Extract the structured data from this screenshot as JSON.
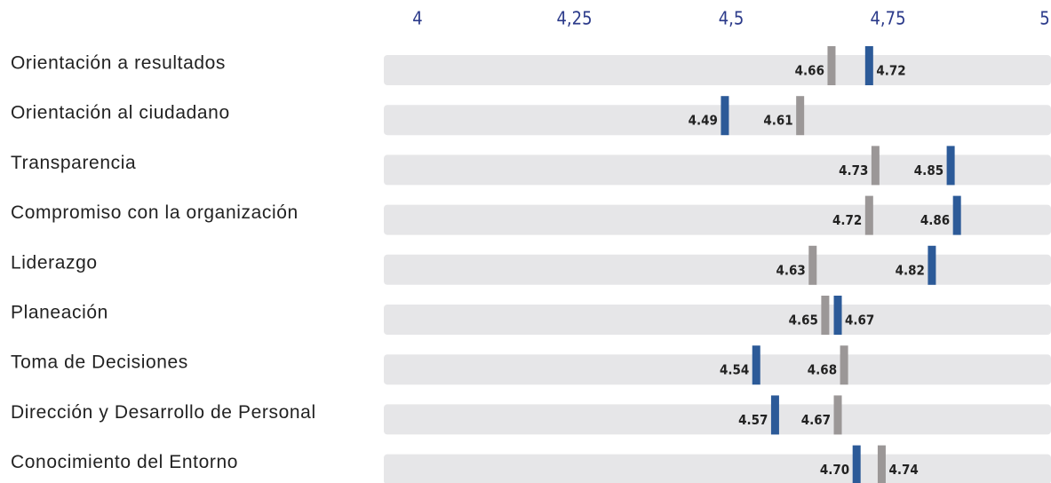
{
  "chart_data": {
    "type": "marker",
    "categories": [
      "Orientación a resultados",
      "Orientación al ciudadano",
      "Transparencia",
      "Compromiso con la organización",
      "Liderazgo",
      "Planeación",
      "Toma de Decisiones",
      "Dirección y Desarrollo de Personal",
      "Conocimiento del Entorno"
    ],
    "series": [
      {
        "color": "#2c5a98",
        "values": [
          4.72,
          4.49,
          4.85,
          4.86,
          4.82,
          4.67,
          4.54,
          4.57,
          4.7
        ],
        "value_labels": [
          "4.72",
          "4.49",
          "4.85",
          "4.86",
          "4.82",
          "4.67",
          "4.54",
          "4.57",
          "4.70"
        ]
      },
      {
        "color": "#9b9797",
        "values": [
          4.66,
          4.61,
          4.73,
          4.72,
          4.63,
          4.65,
          4.68,
          4.67,
          4.74
        ],
        "value_labels": [
          "4.66",
          "4.61",
          "4.73",
          "4.72",
          "4.63",
          "4.65",
          "4.68",
          "4.67",
          "4.74"
        ]
      }
    ],
    "xlim": [
      4,
      5
    ],
    "xticks": [
      4,
      {
        "value": 4.25,
        "label": "4,25"
      },
      {
        "value": 4.5,
        "label": "4,5"
      },
      {
        "value": 4.75,
        "label": "4,75"
      },
      5
    ]
  }
}
